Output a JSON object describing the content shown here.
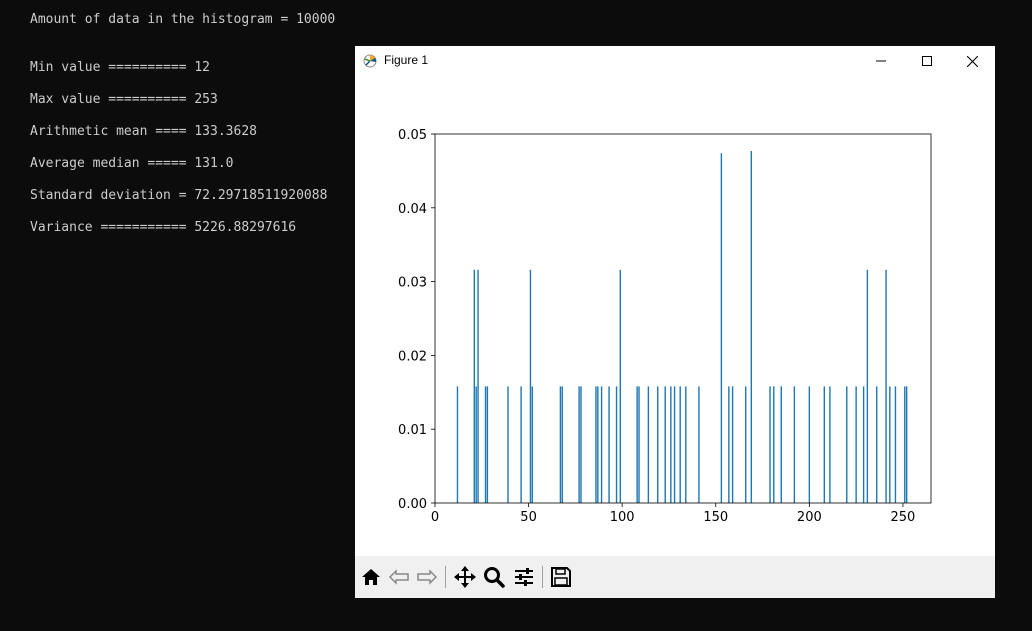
{
  "console": {
    "lines": [
      "Amount of data in the histogram = 10000",
      "Min value ========== 12",
      "Max value ========== 253",
      "Arithmetic mean ==== 133.3628",
      "Average median ===== 131.0",
      "Standard deviation = 72.29718511920088",
      "Variance =========== 5226.88297616"
    ]
  },
  "window": {
    "title": "Figure 1"
  },
  "toolbar": {
    "icons": [
      "home-icon",
      "back-arrow-icon",
      "forward-arrow-icon",
      "pan-icon",
      "zoom-icon",
      "configure-subplots-icon",
      "save-icon"
    ]
  },
  "colors": {
    "console_bg": "#0c0c0c",
    "console_text": "#cccccc",
    "bar": "#1f77b4",
    "toolbar_bg": "#f0f0f0"
  },
  "chart_data": {
    "type": "bar",
    "title": "",
    "xlabel": "",
    "ylabel": "",
    "xlim": [
      0,
      265
    ],
    "ylim": [
      0,
      0.05
    ],
    "xticks": [
      0,
      50,
      100,
      150,
      200,
      250
    ],
    "yticks": [
      0.0,
      0.01,
      0.02,
      0.03,
      0.04,
      0.05
    ],
    "xtick_labels": [
      "0",
      "50",
      "100",
      "150",
      "200",
      "250"
    ],
    "ytick_labels": [
      "0.00",
      "0.01",
      "0.02",
      "0.03",
      "0.04",
      "0.05"
    ],
    "grid": false,
    "bar_width": 0.75,
    "bars": [
      {
        "x": 12,
        "y": 0.0158
      },
      {
        "x": 21,
        "y": 0.0316
      },
      {
        "x": 22,
        "y": 0.0158
      },
      {
        "x": 23,
        "y": 0.0316
      },
      {
        "x": 27,
        "y": 0.0158
      },
      {
        "x": 28,
        "y": 0.0158
      },
      {
        "x": 39,
        "y": 0.0158
      },
      {
        "x": 46,
        "y": 0.0158
      },
      {
        "x": 51,
        "y": 0.0316
      },
      {
        "x": 52,
        "y": 0.0158
      },
      {
        "x": 67,
        "y": 0.0158
      },
      {
        "x": 68,
        "y": 0.0158
      },
      {
        "x": 77,
        "y": 0.0158
      },
      {
        "x": 78,
        "y": 0.0158
      },
      {
        "x": 86,
        "y": 0.0158
      },
      {
        "x": 87,
        "y": 0.0158
      },
      {
        "x": 89,
        "y": 0.0158
      },
      {
        "x": 93,
        "y": 0.0158
      },
      {
        "x": 97,
        "y": 0.0158
      },
      {
        "x": 99,
        "y": 0.0316
      },
      {
        "x": 108,
        "y": 0.0158
      },
      {
        "x": 109,
        "y": 0.0158
      },
      {
        "x": 114,
        "y": 0.0158
      },
      {
        "x": 119,
        "y": 0.0158
      },
      {
        "x": 123,
        "y": 0.0158
      },
      {
        "x": 126,
        "y": 0.0158
      },
      {
        "x": 128,
        "y": 0.0158
      },
      {
        "x": 131,
        "y": 0.0158
      },
      {
        "x": 134,
        "y": 0.0158
      },
      {
        "x": 141,
        "y": 0.0158
      },
      {
        "x": 153,
        "y": 0.0474
      },
      {
        "x": 157,
        "y": 0.0158
      },
      {
        "x": 159,
        "y": 0.0158
      },
      {
        "x": 166,
        "y": 0.0158
      },
      {
        "x": 169,
        "y": 0.0477
      },
      {
        "x": 179,
        "y": 0.0158
      },
      {
        "x": 181,
        "y": 0.0158
      },
      {
        "x": 185,
        "y": 0.0158
      },
      {
        "x": 192,
        "y": 0.0158
      },
      {
        "x": 200,
        "y": 0.0158
      },
      {
        "x": 208,
        "y": 0.0158
      },
      {
        "x": 211,
        "y": 0.0158
      },
      {
        "x": 220,
        "y": 0.0158
      },
      {
        "x": 225,
        "y": 0.0158
      },
      {
        "x": 229,
        "y": 0.0158
      },
      {
        "x": 231,
        "y": 0.0316
      },
      {
        "x": 236,
        "y": 0.0158
      },
      {
        "x": 241,
        "y": 0.0316
      },
      {
        "x": 243,
        "y": 0.0158
      },
      {
        "x": 246,
        "y": 0.0158
      },
      {
        "x": 251,
        "y": 0.0158
      },
      {
        "x": 252,
        "y": 0.0158
      }
    ]
  }
}
